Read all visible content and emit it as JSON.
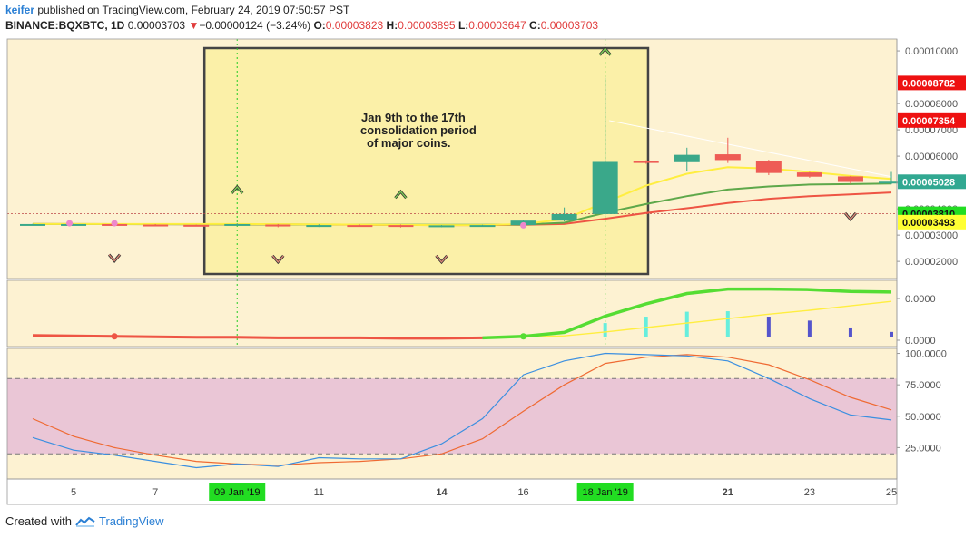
{
  "header": {
    "author": "keifer",
    "published_text": "published on TradingView.com, February 24, 2019 07:50:57 PST",
    "symbol": "BINANCE:BQXBTC, 1D",
    "last_price": "0.00003703",
    "change_arrow": "▼",
    "change": "−0.00000124 (−3.24%)",
    "o_label": "O:",
    "o_value": "0.00003823",
    "h_label": "H:",
    "h_value": "0.00003895",
    "l_label": "L:",
    "l_value": "0.00003647",
    "c_label": "C:",
    "c_value": "0.00003703"
  },
  "footer": {
    "created_with": "Created with",
    "brand": "TradingView"
  },
  "annotation": {
    "lines": [
      "Jan 9th to the 17th",
      "consolidation period",
      "of major coins."
    ]
  },
  "colors": {
    "panel_bg": "#fdf2d2",
    "highlight_box": "#fbf0a8",
    "up": "#3aa88a",
    "down": "#ee5c55",
    "ema_fast": "#ffee40",
    "ema_mid": "#5ea84a",
    "ema_slow": "#ee5544",
    "stoch_k": "#3b8fe0",
    "stoch_d": "#ef6a33",
    "stoch_band": "#eac6d6",
    "label_red": "#ee1111",
    "label_teal": "#31a891",
    "label_green": "#22dd22",
    "label_yellow": "#ffff33"
  },
  "chart_data": {
    "type": "candlestick",
    "x_tick_labels": [
      "5",
      "7",
      "09 Jan '19",
      "11",
      "14",
      "16",
      "18 Jan '19",
      "21",
      "23",
      "25"
    ],
    "x_tick_days": [
      5,
      7,
      9,
      11,
      14,
      16,
      18,
      21,
      23,
      25
    ],
    "highlight_labels": [
      "09 Jan '19",
      "18 Jan '19"
    ],
    "price_axis": {
      "ticks": [
        "0.00010000",
        "0.00008000",
        "0.00007000",
        "0.00006000",
        "0.00005000",
        "0.00004000",
        "0.00003000",
        "0.00002000"
      ],
      "tick_values": [
        0.0001,
        8e-05,
        7e-05,
        6e-05,
        5e-05,
        4e-05,
        3e-05,
        2e-05
      ],
      "ylim": [
        1.35e-05,
        0.0001045
      ],
      "labels": [
        {
          "text": "0.00008782",
          "value": 8.782e-05,
          "color": "label_red"
        },
        {
          "text": "0.00007354",
          "value": 7.354e-05,
          "color": "label_red"
        },
        {
          "text": "0.00005028",
          "value": 5.028e-05,
          "color": "label_teal"
        },
        {
          "text": "0.00003810",
          "value": 3.81e-05,
          "color": "label_green"
        },
        {
          "text": "0.00003493",
          "value": 3.493e-05,
          "color": "label_yellow"
        }
      ]
    },
    "candles": [
      {
        "d": 4,
        "o": 3.41e-05,
        "h": 3.43e-05,
        "l": 3.39e-05,
        "c": 3.42e-05
      },
      {
        "d": 5,
        "o": 3.42e-05,
        "h": 3.44e-05,
        "l": 3.4e-05,
        "c": 3.42e-05
      },
      {
        "d": 6,
        "o": 3.42e-05,
        "h": 3.43e-05,
        "l": 3.36e-05,
        "c": 3.39e-05
      },
      {
        "d": 7,
        "o": 3.4e-05,
        "h": 3.42e-05,
        "l": 3.37e-05,
        "c": 3.39e-05
      },
      {
        "d": 8,
        "o": 3.39e-05,
        "h": 3.4e-05,
        "l": 3.37e-05,
        "c": 3.38e-05
      },
      {
        "d": 9,
        "o": 3.38e-05,
        "h": 3.45e-05,
        "l": 3.37e-05,
        "c": 3.42e-05
      },
      {
        "d": 10,
        "o": 3.4e-05,
        "h": 3.42e-05,
        "l": 3.3e-05,
        "c": 3.33e-05
      },
      {
        "d": 11,
        "o": 3.33e-05,
        "h": 3.41e-05,
        "l": 3.31e-05,
        "c": 3.38e-05
      },
      {
        "d": 12,
        "o": 3.38e-05,
        "h": 3.4e-05,
        "l": 3.35e-05,
        "c": 3.36e-05
      },
      {
        "d": 13,
        "o": 3.38e-05,
        "h": 3.4e-05,
        "l": 3.29e-05,
        "c": 3.32e-05
      },
      {
        "d": 14,
        "o": 3.32e-05,
        "h": 3.38e-05,
        "l": 3.3e-05,
        "c": 3.37e-05
      },
      {
        "d": 15,
        "o": 3.36e-05,
        "h": 3.39e-05,
        "l": 3.34e-05,
        "c": 3.38e-05
      },
      {
        "d": 16,
        "o": 3.38e-05,
        "h": 3.57e-05,
        "l": 3.37e-05,
        "c": 3.55e-05
      },
      {
        "d": 17,
        "o": 3.55e-05,
        "h": 4.05e-05,
        "l": 3.52e-05,
        "c": 3.8e-05
      },
      {
        "d": 18,
        "o": 3.8e-05,
        "h": 8.98e-05,
        "l": 3.75e-05,
        "c": 5.78e-05
      },
      {
        "d": 19,
        "o": 5.81e-05,
        "h": 5.84e-05,
        "l": 5.71e-05,
        "c": 5.79e-05
      },
      {
        "d": 20,
        "o": 5.77e-05,
        "h": 6.32e-05,
        "l": 5.45e-05,
        "c": 6.05e-05
      },
      {
        "d": 21,
        "o": 6.07e-05,
        "h": 6.7e-05,
        "l": 5.74e-05,
        "c": 5.85e-05
      },
      {
        "d": 22,
        "o": 5.83e-05,
        "h": 5.86e-05,
        "l": 5.28e-05,
        "c": 5.36e-05
      },
      {
        "d": 23,
        "o": 5.38e-05,
        "h": 5.4e-05,
        "l": 5.18e-05,
        "c": 5.22e-05
      },
      {
        "d": 24,
        "o": 5.23e-05,
        "h": 5.25e-05,
        "l": 4.95e-05,
        "c": 5.02e-05
      },
      {
        "d": 25,
        "o": 4.97e-05,
        "h": 5.4e-05,
        "l": 4.93e-05,
        "c": 5.03e-05
      }
    ],
    "ema_fast": [
      [
        4,
        3.42e-05
      ],
      [
        9,
        3.42e-05
      ],
      [
        14,
        3.38e-05
      ],
      [
        15,
        3.38e-05
      ],
      [
        16,
        3.42e-05
      ],
      [
        17,
        3.6e-05
      ],
      [
        18,
        4.25e-05
      ],
      [
        19,
        4.88e-05
      ],
      [
        20,
        5.33e-05
      ],
      [
        21,
        5.58e-05
      ],
      [
        22,
        5.53e-05
      ],
      [
        23,
        5.4e-05
      ],
      [
        24,
        5.25e-05
      ],
      [
        25,
        5.13e-05
      ]
    ],
    "ema_mid": [
      [
        4,
        3.42e-05
      ],
      [
        9,
        3.41e-05
      ],
      [
        14,
        3.39e-05
      ],
      [
        15,
        3.39e-05
      ],
      [
        16,
        3.4e-05
      ],
      [
        17,
        3.47e-05
      ],
      [
        18,
        3.85e-05
      ],
      [
        19,
        4.18e-05
      ],
      [
        20,
        4.48e-05
      ],
      [
        21,
        4.73e-05
      ],
      [
        22,
        4.85e-05
      ],
      [
        23,
        4.92e-05
      ],
      [
        24,
        4.94e-05
      ],
      [
        25,
        4.96e-05
      ]
    ],
    "ema_slow": [
      [
        4,
        3.42e-05
      ],
      [
        9,
        3.41e-05
      ],
      [
        14,
        3.38e-05
      ],
      [
        15,
        3.38e-05
      ],
      [
        16,
        3.39e-05
      ],
      [
        17,
        3.42e-05
      ],
      [
        18,
        3.62e-05
      ],
      [
        19,
        3.84e-05
      ],
      [
        20,
        4.02e-05
      ],
      [
        21,
        4.22e-05
      ],
      [
        22,
        4.38e-05
      ],
      [
        23,
        4.48e-05
      ],
      [
        24,
        4.55e-05
      ],
      [
        25,
        4.62e-05
      ]
    ],
    "pink_dots": [
      [
        4.9,
        3.45e-05
      ],
      [
        6,
        3.45e-05
      ],
      [
        16,
        3.37e-05
      ]
    ],
    "arrows_up": [
      [
        9,
        4.73e-05
      ],
      [
        13,
        4.55e-05
      ],
      [
        18,
        9.98e-05
      ]
    ],
    "arrows_down": [
      [
        6,
        2.12e-05
      ],
      [
        10,
        2.08e-05
      ],
      [
        14,
        2.08e-05
      ],
      [
        24,
        3.7e-05
      ]
    ],
    "macd": {
      "axis_ticks": [
        "0.0000",
        "0.0000"
      ],
      "histogram": [
        [
          18,
          0.28
        ],
        [
          19,
          0.41
        ],
        [
          20,
          0.51
        ],
        [
          21,
          0.52
        ],
        [
          22,
          0.41
        ],
        [
          23,
          0.33
        ],
        [
          24,
          0.19
        ],
        [
          25,
          0.1
        ]
      ],
      "signal": [
        [
          16,
          0.0
        ],
        [
          17,
          0.02
        ],
        [
          18,
          0.1
        ],
        [
          19,
          0.19
        ],
        [
          20,
          0.28
        ],
        [
          21,
          0.37
        ],
        [
          22,
          0.46
        ],
        [
          23,
          0.54
        ],
        [
          24,
          0.63
        ],
        [
          25,
          0.72
        ]
      ],
      "line": [
        [
          4,
          0.03
        ],
        [
          5,
          0.02
        ],
        [
          6,
          0.01
        ],
        [
          7,
          0.0
        ],
        [
          8,
          -0.01
        ],
        [
          9,
          -0.01
        ],
        [
          10,
          -0.02
        ],
        [
          11,
          -0.02
        ],
        [
          12,
          -0.02
        ],
        [
          13,
          -0.03
        ],
        [
          14,
          -0.03
        ],
        [
          15,
          -0.02
        ],
        [
          16,
          0.01
        ],
        [
          17,
          0.09
        ],
        [
          18,
          0.42
        ],
        [
          19,
          0.67
        ],
        [
          20,
          0.88
        ],
        [
          21,
          0.97
        ],
        [
          22,
          0.97
        ],
        [
          23,
          0.96
        ],
        [
          24,
          0.92
        ],
        [
          25,
          0.91
        ]
      ],
      "ylim": [
        -0.05,
        1.0
      ]
    },
    "stochastic": {
      "axis_ticks": [
        "100.0000",
        "75.0000",
        "50.0000",
        "25.0000"
      ],
      "tick_values": [
        100,
        75,
        50,
        25
      ],
      "upper_band": 80,
      "lower_band": 20,
      "ylim": [
        0,
        104
      ],
      "k": [
        [
          4,
          33
        ],
        [
          5,
          23
        ],
        [
          6,
          19
        ],
        [
          7,
          14
        ],
        [
          8,
          9
        ],
        [
          9,
          12
        ],
        [
          10,
          10
        ],
        [
          11,
          17
        ],
        [
          12,
          16
        ],
        [
          13,
          16
        ],
        [
          14,
          28
        ],
        [
          15,
          48
        ],
        [
          16,
          83
        ],
        [
          17,
          94
        ],
        [
          18,
          100
        ],
        [
          19,
          99
        ],
        [
          20,
          98
        ],
        [
          21,
          94
        ],
        [
          22,
          80
        ],
        [
          23,
          64
        ],
        [
          24,
          51
        ],
        [
          25,
          47
        ]
      ],
      "d": [
        [
          4,
          48
        ],
        [
          5,
          34
        ],
        [
          6,
          25
        ],
        [
          7,
          19
        ],
        [
          8,
          14
        ],
        [
          9,
          12
        ],
        [
          10,
          11
        ],
        [
          11,
          13
        ],
        [
          12,
          14
        ],
        [
          13,
          16
        ],
        [
          14,
          20
        ],
        [
          15,
          32
        ],
        [
          16,
          54
        ],
        [
          17,
          75
        ],
        [
          18,
          92
        ],
        [
          19,
          97
        ],
        [
          20,
          99
        ],
        [
          21,
          97
        ],
        [
          22,
          91
        ],
        [
          23,
          79
        ],
        [
          24,
          65
        ],
        [
          25,
          55
        ]
      ]
    }
  }
}
